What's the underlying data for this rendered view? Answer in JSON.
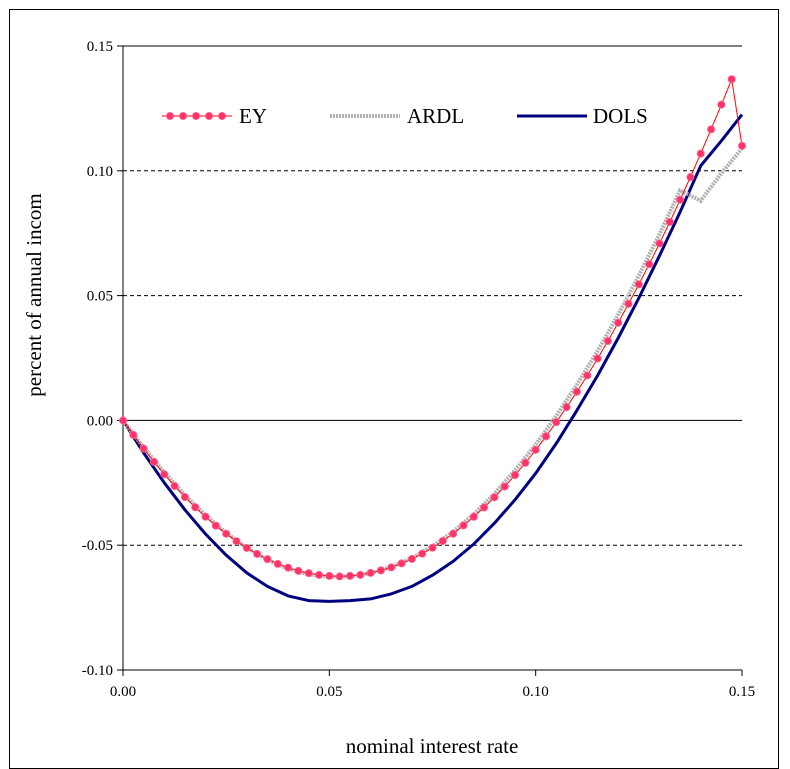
{
  "chart_data": {
    "type": "line",
    "xlabel": "nominal interest rate",
    "ylabel": "percent of annual incom",
    "xlim": [
      0,
      0.15
    ],
    "ylim": [
      -0.1,
      0.15
    ],
    "x_ticks": [
      "0.00",
      "0.05",
      "0.10",
      "0.15"
    ],
    "y_ticks": [
      "-0.10",
      "-0.05",
      "0.00",
      "0.05",
      "0.10",
      "0.15"
    ],
    "grid": "horizontal dashed",
    "legend": "top",
    "series": [
      {
        "name": "EY",
        "color": "#ff0000",
        "marker_color": "#ff3366",
        "x": [
          0.0,
          0.0025,
          0.005,
          0.0075,
          0.01,
          0.0125,
          0.015,
          0.0175,
          0.02,
          0.0225,
          0.025,
          0.0275,
          0.03,
          0.0325,
          0.035,
          0.0375,
          0.04,
          0.0425,
          0.045,
          0.0475,
          0.05,
          0.0525,
          0.055,
          0.0575,
          0.06,
          0.0625,
          0.065,
          0.0675,
          0.07,
          0.0725,
          0.075,
          0.0775,
          0.08,
          0.0825,
          0.085,
          0.0875,
          0.09,
          0.0925,
          0.095,
          0.0975,
          0.1,
          0.1025,
          0.105,
          0.1075,
          0.11,
          0.1125,
          0.115,
          0.1175,
          0.12,
          0.1225,
          0.125,
          0.1275,
          0.13,
          0.1325,
          0.135,
          0.1375,
          0.14,
          0.1425,
          0.145,
          0.1475,
          0.15
        ],
        "values": [
          0.0,
          -0.0058,
          -0.0113,
          -0.0166,
          -0.0216,
          -0.0263,
          -0.0307,
          -0.0348,
          -0.0386,
          -0.0422,
          -0.0454,
          -0.0484,
          -0.0511,
          -0.0535,
          -0.0556,
          -0.0575,
          -0.059,
          -0.0603,
          -0.0612,
          -0.0619,
          -0.0623,
          -0.0625,
          -0.0623,
          -0.0619,
          -0.0611,
          -0.0601,
          -0.0589,
          -0.0573,
          -0.0555,
          -0.0534,
          -0.051,
          -0.0483,
          -0.0454,
          -0.0421,
          -0.0386,
          -0.0349,
          -0.0308,
          -0.0265,
          -0.0219,
          -0.017,
          -0.0118,
          -0.0064,
          -0.0007,
          0.0053,
          0.0115,
          0.018,
          0.0248,
          0.0318,
          0.0391,
          0.0467,
          0.0545,
          0.0626,
          0.0709,
          0.0795,
          0.0884,
          0.0975,
          0.1069,
          0.1166,
          0.1265,
          0.1367,
          0.11
        ]
      },
      {
        "name": "ARDL",
        "color": "#b0b0b0",
        "x": [
          0.0,
          0.005,
          0.01,
          0.015,
          0.02,
          0.025,
          0.03,
          0.035,
          0.04,
          0.045,
          0.05,
          0.055,
          0.06,
          0.065,
          0.07,
          0.075,
          0.08,
          0.085,
          0.09,
          0.095,
          0.1,
          0.105,
          0.11,
          0.115,
          0.12,
          0.125,
          0.13,
          0.135,
          0.14,
          0.145,
          0.15
        ],
        "values": [
          0.0,
          -0.0108,
          -0.0208,
          -0.0299,
          -0.038,
          -0.0451,
          -0.0511,
          -0.0559,
          -0.0594,
          -0.0617,
          -0.0627,
          -0.0625,
          -0.0612,
          -0.0588,
          -0.0552,
          -0.0505,
          -0.0446,
          -0.0376,
          -0.0294,
          -0.02,
          -0.0097,
          0.0018,
          0.0143,
          0.0278,
          0.0424,
          0.058,
          0.0746,
          0.0922,
          0.088,
          0.099,
          0.109
        ]
      },
      {
        "name": "DOLS",
        "color": "#000080",
        "x": [
          0.0,
          0.005,
          0.01,
          0.015,
          0.02,
          0.025,
          0.03,
          0.035,
          0.04,
          0.045,
          0.05,
          0.055,
          0.06,
          0.065,
          0.07,
          0.075,
          0.08,
          0.085,
          0.09,
          0.095,
          0.1,
          0.105,
          0.11,
          0.115,
          0.12,
          0.125,
          0.13,
          0.135,
          0.14,
          0.145,
          0.15
        ],
        "values": [
          0.0,
          -0.013,
          -0.025,
          -0.0358,
          -0.0455,
          -0.054,
          -0.0611,
          -0.0665,
          -0.0703,
          -0.0722,
          -0.0725,
          -0.0722,
          -0.0715,
          -0.0695,
          -0.0665,
          -0.062,
          -0.0565,
          -0.0495,
          -0.0412,
          -0.0318,
          -0.0212,
          -0.0092,
          0.004,
          0.018,
          0.033,
          0.049,
          0.066,
          0.0835,
          0.102,
          0.112,
          0.1225
        ]
      }
    ]
  }
}
